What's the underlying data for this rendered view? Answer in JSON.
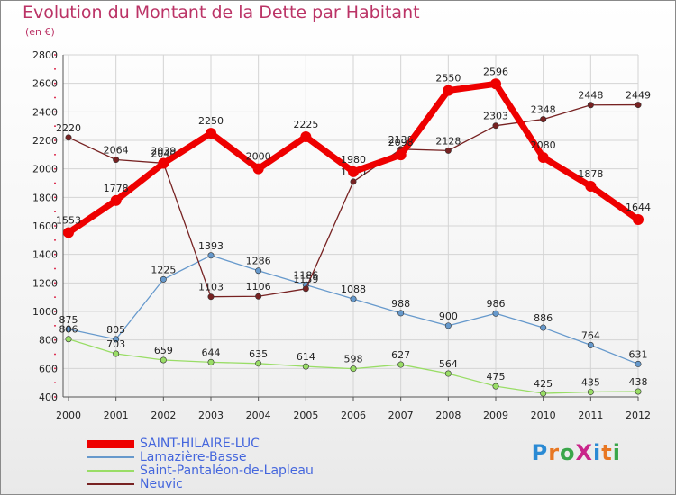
{
  "title": "Evolution du Montant de la Dette par Habitant",
  "subtitle": "(en €)",
  "brand": "ProXiti",
  "brand_colors": [
    "#2a8ad4",
    "#e87722",
    "#3aa64a",
    "#c9248a",
    "#2a8ad4",
    "#e87722",
    "#3aa64a"
  ],
  "chart_data": {
    "type": "line",
    "title": "Evolution du Montant de la Dette par Habitant",
    "subtitle": "(en €)",
    "x": [
      "2000",
      "2001",
      "2002",
      "2003",
      "2004",
      "2005",
      "2006",
      "2007",
      "2008",
      "2009",
      "2010",
      "2011",
      "2012"
    ],
    "ylim": [
      400,
      2800
    ],
    "yticks": [
      400,
      600,
      800,
      1000,
      1200,
      1400,
      1600,
      1800,
      2000,
      2200,
      2400,
      2600,
      2800
    ],
    "grid": true,
    "legend_position": "bottom-left",
    "series": [
      {
        "name": "SAINT-HILAIRE-LUC",
        "color": "#ee0000",
        "emphasis": "thick",
        "values": [
          1553,
          1778,
          2039,
          2250,
          2000,
          2225,
          1980,
          2098,
          2550,
          2596,
          2080,
          1878,
          1644
        ]
      },
      {
        "name": "Lamazière-Basse",
        "color": "#6699cc",
        "emphasis": "thin",
        "values": [
          875,
          805,
          1225,
          1393,
          1286,
          1186,
          1088,
          988,
          900,
          986,
          886,
          764,
          631
        ]
      },
      {
        "name": "Saint-Pantaléon-de-Lapleau",
        "color": "#99dd66",
        "emphasis": "thin",
        "values": [
          806,
          703,
          659,
          644,
          635,
          614,
          598,
          627,
          564,
          475,
          425,
          435,
          438
        ]
      },
      {
        "name": "Neuvic",
        "color": "#772222",
        "emphasis": "thin",
        "values": [
          2220,
          2064,
          2040,
          1103,
          1106,
          1159,
          1910,
          2138,
          2128,
          2303,
          2348,
          2448,
          2449
        ]
      }
    ]
  }
}
